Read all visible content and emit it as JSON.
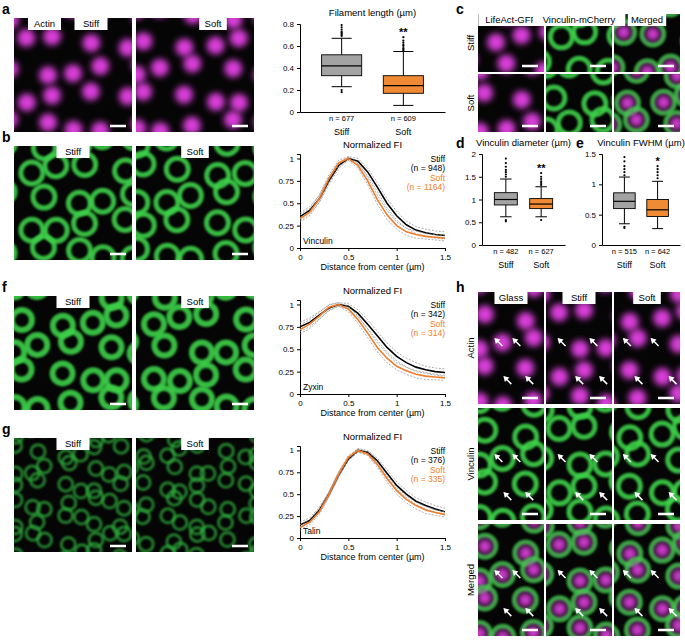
{
  "chart_data": [
    {
      "type": "box",
      "title": "Filament length (µm)",
      "categories": [
        "Stiff",
        "Soft"
      ],
      "ylim": [
        0,
        0.8
      ],
      "yticks": [
        0,
        0.2,
        0.4,
        0.6,
        0.8
      ],
      "colors": [
        "#a3a3a3",
        "#f08a35"
      ],
      "boxes": [
        {
          "min": 0.23,
          "q1": 0.33,
          "median": 0.42,
          "q3": 0.52,
          "max": 0.67,
          "outliers": [
            0.18,
            0.2,
            0.69,
            0.7,
            0.71,
            0.72,
            0.73,
            0.75,
            0.77,
            0.79
          ]
        },
        {
          "min": 0.06,
          "q1": 0.17,
          "median": 0.24,
          "q3": 0.33,
          "max": 0.55,
          "outliers": [
            0.56,
            0.57,
            0.58,
            0.6,
            0.61,
            0.63,
            0.65,
            0.68
          ]
        }
      ],
      "annotations": [
        "n = 677",
        "n = 609"
      ],
      "significance": [
        null,
        "**"
      ]
    },
    {
      "type": "line",
      "title": "Normalized FI",
      "xlabel": "Distance from center (µm)",
      "annotation": "Vinculin",
      "x": [
        0,
        0.1,
        0.2,
        0.3,
        0.4,
        0.5,
        0.6,
        0.7,
        0.8,
        0.9,
        1.0,
        1.1,
        1.2,
        1.3,
        1.4,
        1.5
      ],
      "xlim": [
        0,
        1.5
      ],
      "xticks": [
        0,
        0.5,
        1,
        1.5
      ],
      "ylim": [
        0,
        1.05
      ],
      "yticks": [
        0,
        0.25,
        0.5,
        0.75,
        1
      ],
      "series": [
        {
          "name": "Stiff",
          "note": "(n = 948)",
          "color": "#000000",
          "values": [
            0.35,
            0.42,
            0.55,
            0.75,
            0.92,
            1.0,
            0.97,
            0.85,
            0.68,
            0.5,
            0.36,
            0.26,
            0.2,
            0.17,
            0.15,
            0.14
          ],
          "errors": [
            0.04,
            0.04,
            0.04,
            0.04,
            0.03,
            0.02,
            0.03,
            0.04,
            0.05,
            0.05,
            0.05,
            0.04,
            0.04,
            0.04,
            0.04,
            0.04
          ]
        },
        {
          "name": "Soft",
          "note": "(n = 1164)",
          "color": "#f07d2a",
          "values": [
            0.33,
            0.4,
            0.55,
            0.78,
            0.95,
            1.0,
            0.92,
            0.75,
            0.54,
            0.37,
            0.25,
            0.18,
            0.15,
            0.13,
            0.12,
            0.11
          ],
          "errors": [
            0.04,
            0.04,
            0.04,
            0.04,
            0.03,
            0.02,
            0.03,
            0.04,
            0.05,
            0.05,
            0.04,
            0.04,
            0.04,
            0.03,
            0.03,
            0.03
          ]
        }
      ]
    },
    {
      "type": "box",
      "panel": "d",
      "title": "Vinculin diameter (µm)",
      "categories": [
        "Stiff",
        "Soft"
      ],
      "ylim": [
        0,
        2
      ],
      "yticks": [
        0,
        0.5,
        1,
        1.5,
        2
      ],
      "colors": [
        "#a3a3a3",
        "#f08a35"
      ],
      "boxes": [
        {
          "min": 0.62,
          "q1": 0.88,
          "median": 1.0,
          "q3": 1.15,
          "max": 1.45,
          "outliers": [
            0.52,
            0.55,
            1.5,
            1.55,
            1.6,
            1.65,
            1.72,
            1.8,
            1.9
          ]
        },
        {
          "min": 0.62,
          "q1": 0.8,
          "median": 0.9,
          "q3": 1.02,
          "max": 1.28,
          "outliers": [
            0.55,
            1.32,
            1.36,
            1.4,
            1.45,
            1.5,
            1.58
          ]
        }
      ],
      "annotations": [
        "n = 482",
        "n = 627"
      ],
      "significance": [
        null,
        "**"
      ]
    },
    {
      "type": "box",
      "panel": "e",
      "title": "Vinculin FWHM (µm)",
      "categories": [
        "Stiff",
        "Soft"
      ],
      "ylim": [
        0,
        1.5
      ],
      "yticks": [
        0,
        0.5,
        1,
        1.5
      ],
      "colors": [
        "#a3a3a3",
        "#f08a35"
      ],
      "boxes": [
        {
          "min": 0.35,
          "q1": 0.6,
          "median": 0.72,
          "q3": 0.86,
          "max": 1.12,
          "outliers": [
            0.28,
            0.3,
            1.15,
            1.2,
            1.25,
            1.3,
            1.38,
            1.45
          ]
        },
        {
          "min": 0.27,
          "q1": 0.47,
          "median": 0.58,
          "q3": 0.75,
          "max": 1.05,
          "outliers": [
            1.1,
            1.15,
            1.2,
            1.25,
            1.3
          ]
        }
      ],
      "annotations": [
        "n = 515",
        "n = 642"
      ],
      "significance": [
        null,
        "*"
      ]
    },
    {
      "type": "line",
      "title": "Normalized FI",
      "xlabel": "Distance from center (µm)",
      "annotation": "Zyxin",
      "x": [
        0,
        0.1,
        0.2,
        0.3,
        0.4,
        0.5,
        0.6,
        0.7,
        0.8,
        0.9,
        1.0,
        1.1,
        1.2,
        1.3,
        1.4,
        1.5
      ],
      "xlim": [
        0,
        1.5
      ],
      "xticks": [
        0,
        0.5,
        1,
        1.5
      ],
      "ylim": [
        0,
        1.05
      ],
      "yticks": [
        0,
        0.25,
        0.5,
        0.75,
        1
      ],
      "series": [
        {
          "name": "Stiff",
          "note": "(n = 342)",
          "color": "#000000",
          "values": [
            0.75,
            0.8,
            0.88,
            0.96,
            1.0,
            0.98,
            0.9,
            0.78,
            0.65,
            0.52,
            0.42,
            0.35,
            0.3,
            0.27,
            0.25,
            0.24
          ],
          "errors": [
            0.05,
            0.05,
            0.04,
            0.03,
            0.02,
            0.03,
            0.04,
            0.05,
            0.05,
            0.05,
            0.05,
            0.05,
            0.05,
            0.04,
            0.04,
            0.04
          ]
        },
        {
          "name": "Soft",
          "note": "(n = 314)",
          "color": "#f07d2a",
          "values": [
            0.72,
            0.78,
            0.87,
            0.97,
            1.0,
            0.95,
            0.83,
            0.68,
            0.52,
            0.4,
            0.31,
            0.26,
            0.22,
            0.2,
            0.19,
            0.18
          ],
          "errors": [
            0.05,
            0.05,
            0.04,
            0.03,
            0.02,
            0.03,
            0.04,
            0.05,
            0.05,
            0.05,
            0.04,
            0.04,
            0.04,
            0.04,
            0.03,
            0.03
          ]
        }
      ]
    },
    {
      "type": "line",
      "title": "Normalized FI",
      "xlabel": "Distance from center (µm)",
      "annotation": "Talin",
      "x": [
        0,
        0.1,
        0.2,
        0.3,
        0.4,
        0.5,
        0.6,
        0.7,
        0.8,
        0.9,
        1.0,
        1.1,
        1.2,
        1.3,
        1.4,
        1.5
      ],
      "xlim": [
        0,
        1.5
      ],
      "xticks": [
        0,
        0.5,
        1,
        1.5
      ],
      "ylim": [
        0,
        1.05
      ],
      "yticks": [
        0,
        0.25,
        0.5,
        0.75,
        1
      ],
      "series": [
        {
          "name": "Stiff",
          "note": "(n = 376)",
          "color": "#000000",
          "values": [
            0.15,
            0.2,
            0.32,
            0.5,
            0.72,
            0.9,
            1.0,
            0.98,
            0.88,
            0.74,
            0.6,
            0.5,
            0.42,
            0.37,
            0.33,
            0.3
          ],
          "errors": [
            0.03,
            0.03,
            0.03,
            0.03,
            0.03,
            0.02,
            0.02,
            0.02,
            0.03,
            0.04,
            0.04,
            0.04,
            0.04,
            0.04,
            0.04,
            0.04
          ]
        },
        {
          "name": "Soft",
          "note": "(n = 335)",
          "color": "#f07d2a",
          "values": [
            0.12,
            0.18,
            0.3,
            0.5,
            0.73,
            0.92,
            1.0,
            0.96,
            0.84,
            0.68,
            0.54,
            0.44,
            0.37,
            0.32,
            0.29,
            0.27
          ],
          "errors": [
            0.03,
            0.03,
            0.03,
            0.03,
            0.03,
            0.02,
            0.02,
            0.02,
            0.03,
            0.04,
            0.04,
            0.04,
            0.04,
            0.04,
            0.03,
            0.03
          ]
        }
      ]
    }
  ],
  "figure": {
    "image_groups": [
      {
        "letter": "a",
        "titles": [
          "Stiff",
          "Soft"
        ],
        "tag": "Actin"
      },
      {
        "letter": "b",
        "titles": [
          "Stiff",
          "Soft"
        ]
      },
      {
        "letter": "c",
        "columns": [
          "LifeAct-GFP",
          "Vinculin-mCherry",
          "Merged"
        ],
        "rows": [
          "Stiff",
          "Soft"
        ]
      },
      {
        "letter": "f",
        "titles": [
          "Stiff",
          "Soft"
        ]
      },
      {
        "letter": "g",
        "titles": [
          "Stiff",
          "Soft"
        ]
      },
      {
        "letter": "h",
        "columns": [
          "Glass",
          "Stiff",
          "Soft"
        ],
        "rows": [
          "Actin",
          "Vinculin",
          "Merged"
        ]
      }
    ]
  }
}
